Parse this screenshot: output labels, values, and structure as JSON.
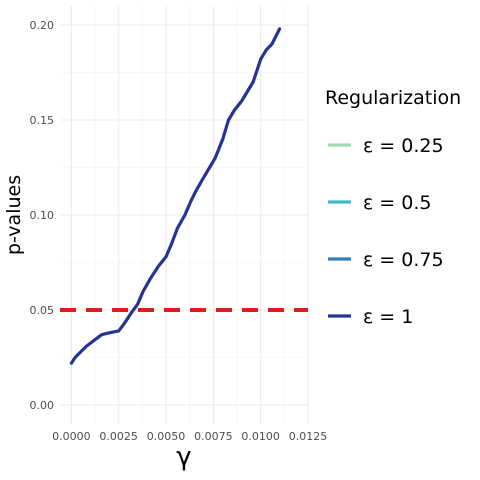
{
  "chart_data": {
    "type": "line",
    "xlabel": "γ",
    "ylabel": "p-values",
    "xlim": [
      -0.0006,
      0.0125
    ],
    "ylim": [
      -0.01,
      0.21
    ],
    "x_ticks": [
      0,
      0.0025,
      0.005,
      0.0075,
      0.01,
      0.0125
    ],
    "x_tick_labels": [
      "0.0000",
      "0.0025",
      "0.0050",
      "0.0075",
      "0.0100",
      "0.0125"
    ],
    "y_ticks": [
      0,
      0.05,
      0.1,
      0.15,
      0.2
    ],
    "y_tick_labels": [
      "0.00",
      "0.05",
      "0.10",
      "0.15",
      "0.20"
    ],
    "grid": true,
    "reference_line": {
      "y": 0.05,
      "color": "#dd1c1c",
      "style": "dashed"
    },
    "legend": {
      "title": "Regularization",
      "placement": "right",
      "entries": [
        {
          "label": "ε = 0.25",
          "color": "#a1dab4"
        },
        {
          "label": "ε = 0.5",
          "color": "#41b6c4"
        },
        {
          "label": "ε = 0.75",
          "color": "#2c7fb8"
        },
        {
          "label": "ε = 1",
          "color": "#253494"
        }
      ]
    },
    "series": [
      {
        "name": "ε = 1",
        "color": "#253494",
        "x": [
          0.0,
          0.0002,
          0.0005,
          0.0008,
          0.0012,
          0.0016,
          0.002,
          0.0025,
          0.0028,
          0.003,
          0.0032,
          0.0035,
          0.0038,
          0.0042,
          0.0046,
          0.005,
          0.0053,
          0.0056,
          0.006,
          0.0063,
          0.0066,
          0.007,
          0.0073,
          0.0076,
          0.008,
          0.0083,
          0.0086,
          0.009,
          0.0093,
          0.0096,
          0.01,
          0.0103,
          0.0106,
          0.011
        ],
        "y": [
          0.022,
          0.025,
          0.028,
          0.031,
          0.034,
          0.037,
          0.038,
          0.039,
          0.043,
          0.046,
          0.049,
          0.053,
          0.06,
          0.067,
          0.073,
          0.078,
          0.085,
          0.093,
          0.1,
          0.107,
          0.113,
          0.12,
          0.125,
          0.13,
          0.14,
          0.15,
          0.155,
          0.16,
          0.165,
          0.17,
          0.182,
          0.187,
          0.19,
          0.198
        ]
      }
    ]
  }
}
